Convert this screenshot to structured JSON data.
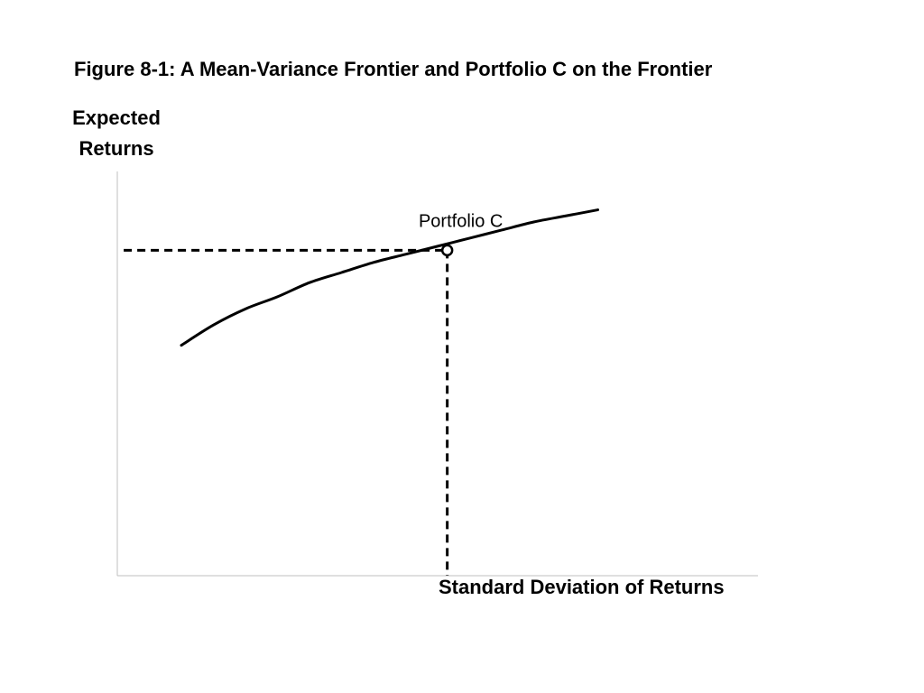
{
  "chart_data": {
    "type": "line",
    "title": "Figure 8-1: A Mean-Variance Frontier and Portfolio C on the Frontier",
    "xlabel": "Standard Deviation of Returns",
    "ylabel": "Expected Returns",
    "grid": false,
    "xlim": [
      0,
      100
    ],
    "ylim": [
      0,
      100
    ],
    "series": [
      {
        "values": [
          {
            "x": 10,
            "y": 57
          },
          {
            "x": 15,
            "y": 62
          },
          {
            "x": 20,
            "y": 66
          },
          {
            "x": 25,
            "y": 69
          },
          {
            "x": 30,
            "y": 72.5
          },
          {
            "x": 35,
            "y": 75
          },
          {
            "x": 40,
            "y": 77.5
          },
          {
            "x": 45,
            "y": 79.5
          },
          {
            "x": 50,
            "y": 81.5
          },
          {
            "x": 55,
            "y": 83.5
          },
          {
            "x": 60,
            "y": 85.5
          },
          {
            "x": 65,
            "y": 87.5
          },
          {
            "x": 70,
            "y": 89
          },
          {
            "x": 75,
            "y": 90.5
          }
        ]
      }
    ],
    "points": [
      {
        "label": "Portfolio C",
        "x": 51.5,
        "y": 80.5
      }
    ],
    "guides": [
      {
        "from": {
          "x": 1,
          "y": 80.5
        },
        "to": {
          "x": 51.5,
          "y": 80.5
        },
        "style": "dashed"
      },
      {
        "from": {
          "x": 51.5,
          "y": 80.5
        },
        "to": {
          "x": 51.5,
          "y": 0
        },
        "style": "dashed"
      }
    ],
    "colors": {
      "line": "#000000",
      "axis": "#bfbfbf",
      "guide": "#000000"
    }
  }
}
